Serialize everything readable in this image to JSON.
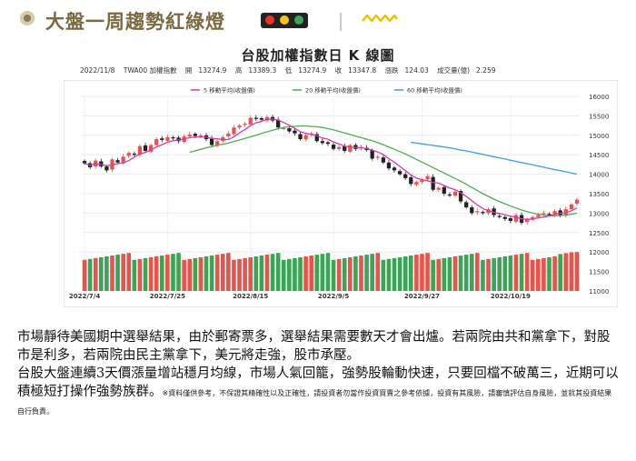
{
  "header": {
    "title": "大盤一周趨勢紅綠燈",
    "lights": [
      "#e8342a",
      "#f3c316",
      "#3aa655"
    ],
    "accent": "#f0c000"
  },
  "chart_data": {
    "type": "candlestick",
    "title": "台股加權指數日 K 線圖",
    "info": {
      "date": "2022/11/8",
      "code": "TWA00 加權指數",
      "open_label": "開",
      "open": "13274.9",
      "high_label": "高",
      "high": "13389.3",
      "low_label": "低",
      "low": "13274.9",
      "close_label": "收",
      "close": "13347.8",
      "change_label": "漲跌",
      "change": "124.03",
      "volume_label": "成交量(億)",
      "volume": "2.259"
    },
    "legend": [
      {
        "name": "5 移動平均(收盤價)",
        "color": "#d63ab0"
      },
      {
        "name": "20 移動平均(收盤價)",
        "color": "#4caf50"
      },
      {
        "name": "60 移動平均(收盤價)",
        "color": "#3a9ce0"
      }
    ],
    "y_ticks": [
      "16000",
      "15500",
      "15000",
      "14500",
      "14000",
      "13500",
      "13000",
      "12500",
      "12000",
      "11500",
      "11000"
    ],
    "ylim": [
      11000,
      16000
    ],
    "x_ticks": [
      {
        "label": "2022/7/4",
        "index": 0
      },
      {
        "label": "2022/7/25",
        "index": 15
      },
      {
        "label": "2022/8/15",
        "index": 30
      },
      {
        "label": "2022/9/5",
        "index": 45
      },
      {
        "label": "2022/9/27",
        "index": 61
      },
      {
        "label": "2022/10/19",
        "index": 77
      }
    ],
    "close": [
      14280,
      14180,
      14350,
      14200,
      14100,
      14380,
      14300,
      14450,
      14550,
      14500,
      14720,
      14600,
      14750,
      14900,
      14880,
      14950,
      14920,
      14850,
      14970,
      15020,
      14980,
      15000,
      14900,
      14750,
      14850,
      14950,
      15050,
      15200,
      15250,
      15300,
      15450,
      15420,
      15400,
      15470,
      15380,
      15200,
      15180,
      15100,
      15050,
      14900,
      15000,
      15050,
      14850,
      14800,
      14780,
      14650,
      14700,
      14600,
      14750,
      14650,
      14700,
      14620,
      14400,
      14450,
      14300,
      14150,
      14100,
      14000,
      13900,
      13750,
      13800,
      13850,
      13950,
      13600,
      13650,
      13500,
      13450,
      13550,
      13300,
      13150,
      13000,
      13050,
      13000,
      13100,
      12950,
      12900,
      12850,
      12800,
      12950,
      12750,
      12850,
      12900,
      12950,
      13000,
      12950,
      13050,
      12950,
      13100,
      13223.77,
      13347.8
    ],
    "ma5": [
      14280,
      14230,
      14270,
      14250,
      14220,
      14240,
      14270,
      14290,
      14350,
      14440,
      14520,
      14560,
      14620,
      14700,
      14760,
      14820,
      14860,
      14880,
      14910,
      14940,
      14950,
      14960,
      14950,
      14920,
      14910,
      14890,
      14890,
      14960,
      15060,
      15150,
      15250,
      15320,
      15360,
      15410,
      15420,
      15390,
      15330,
      15260,
      15180,
      15090,
      15050,
      15020,
      14990,
      14930,
      14900,
      14830,
      14780,
      14720,
      14700,
      14690,
      14680,
      14660,
      14620,
      14570,
      14510,
      14400,
      14310,
      14200,
      14090,
      13980,
      13900,
      13860,
      13830,
      13790,
      13770,
      13710,
      13650,
      13600,
      13520,
      13430,
      13320,
      13210,
      13120,
      13060,
      13020,
      12990,
      12960,
      12920,
      12900,
      12850,
      12840,
      12850,
      12880,
      12900,
      12930,
      12970,
      13000,
      13010,
      13060,
      13130
    ],
    "ma20": [
      null,
      null,
      null,
      null,
      null,
      null,
      null,
      null,
      null,
      null,
      null,
      null,
      null,
      null,
      null,
      null,
      null,
      null,
      null,
      14560,
      14600,
      14640,
      14680,
      14710,
      14740,
      14770,
      14800,
      14840,
      14880,
      14920,
      14960,
      15000,
      15050,
      15090,
      15130,
      15170,
      15200,
      15220,
      15230,
      15240,
      15240,
      15230,
      15220,
      15200,
      15170,
      15140,
      15100,
      15060,
      15020,
      14980,
      14940,
      14900,
      14860,
      14810,
      14760,
      14700,
      14640,
      14580,
      14520,
      14450,
      14380,
      14310,
      14240,
      14170,
      14100,
      14030,
      13960,
      13890,
      13820,
      13740,
      13660,
      13580,
      13500,
      13430,
      13360,
      13300,
      13240,
      13180,
      13130,
      13080,
      13040,
      13000,
      12970,
      12950,
      12930,
      12930,
      12940,
      12950,
      12970,
      13000
    ],
    "ma60": [
      null,
      null,
      null,
      null,
      null,
      null,
      null,
      null,
      null,
      null,
      null,
      null,
      null,
      null,
      null,
      null,
      null,
      null,
      null,
      null,
      null,
      null,
      null,
      null,
      null,
      null,
      null,
      null,
      null,
      null,
      null,
      null,
      null,
      null,
      null,
      null,
      null,
      null,
      null,
      null,
      null,
      null,
      null,
      null,
      null,
      null,
      null,
      null,
      null,
      null,
      null,
      null,
      null,
      null,
      null,
      null,
      null,
      null,
      null,
      14820,
      14800,
      14780,
      14760,
      14740,
      14720,
      14700,
      14680,
      14650,
      14620,
      14600,
      14570,
      14540,
      14510,
      14480,
      14450,
      14420,
      14390,
      14360,
      14330,
      14300,
      14270,
      14240,
      14210,
      14180,
      14150,
      14120,
      14090,
      14060,
      14030,
      14000
    ],
    "volume_range": [
      11000,
      12000
    ],
    "up_color": "#e8534a",
    "down_color": "#222222",
    "vol_up_color": "#e8534a",
    "vol_down_color": "#3aa655"
  },
  "body_text": {
    "p1": "市場靜待美國期中選舉結果，由於郵寄票多，選舉結果需要數天才會出爐。若兩院由共和黨拿下，對股市是利多，若兩院由民主黨拿下，美元將走強，股市承壓。",
    "p2": "台股大盤連續3天價漲量增站穩月均線，市場人氣回籠，強勢股輪動快速，只要回檔不破萬三，近期可以積極短打操作強勢族群。",
    "disclaimer": "※資料僅供參考，不保證其精確性以及正確性，請投資者勿當作投資買賣之參考依據，投資有其風險，請審慎評估自身風險，並就其投資結果自行負責。"
  }
}
